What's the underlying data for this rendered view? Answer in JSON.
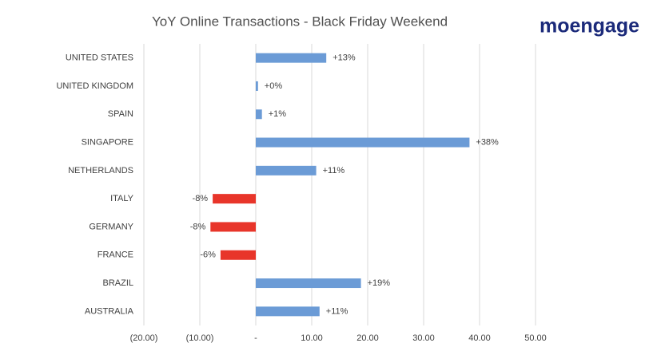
{
  "logo": "moengage",
  "chart_data": {
    "type": "hbar",
    "title": "YoY Online Transactions - Black Friday Weekend",
    "categories": [
      "UNITED STATES",
      "UNITED KINGDOM",
      "SPAIN",
      "SINGAPORE",
      "NETHERLANDS",
      "ITALY",
      "GERMANY",
      "FRANCE",
      "BRAZIL",
      "AUSTRALIA"
    ],
    "values": [
      12.6,
      0.4,
      1.1,
      38.2,
      10.8,
      -7.7,
      -8.1,
      -6.3,
      18.8,
      11.4
    ],
    "value_labels": [
      "+13%",
      "+0%",
      "+1%",
      "+38%",
      "+11%",
      "-8%",
      "-8%",
      "-6%",
      "+19%",
      "+11%"
    ],
    "colors": [
      "#6b9bd6",
      "#6b9bd6",
      "#6b9bd6",
      "#6b9bd6",
      "#6b9bd6",
      "#e8352a",
      "#e8352a",
      "#e8352a",
      "#6b9bd6",
      "#6b9bd6"
    ],
    "xlim": [
      -20,
      50
    ],
    "xticks": [
      {
        "value": -20,
        "label": "(20.00)"
      },
      {
        "value": -10,
        "label": "(10.00)"
      },
      {
        "value": 0,
        "label": "-"
      },
      {
        "value": 10,
        "label": "10.00"
      },
      {
        "value": 20,
        "label": "20.00"
      },
      {
        "value": 30,
        "label": "30.00"
      },
      {
        "value": 40,
        "label": "40.00"
      },
      {
        "value": 50,
        "label": "50.00"
      }
    ],
    "grid": true
  }
}
